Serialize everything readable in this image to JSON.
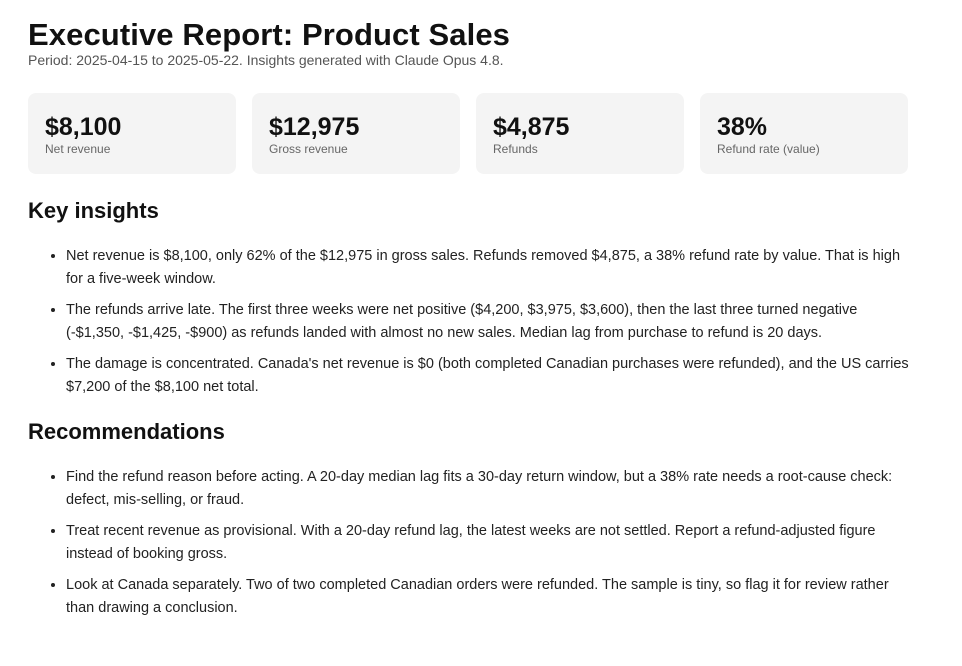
{
  "header": {
    "title": "Executive Report: Product Sales",
    "subtitle": "Period: 2025-04-15 to 2025-05-22. Insights generated with Claude Opus 4.8."
  },
  "kpis": [
    {
      "value": "$8,100",
      "label": "Net revenue"
    },
    {
      "value": "$12,975",
      "label": "Gross revenue"
    },
    {
      "value": "$4,875",
      "label": "Refunds"
    },
    {
      "value": "38%",
      "label": "Refund rate (value)"
    }
  ],
  "insights": {
    "heading": "Key insights",
    "items": [
      "Net revenue is $8,100, only 62% of the $12,975 in gross sales. Refunds removed $4,875, a 38% refund rate by value. That is high for a five-week window.",
      "The refunds arrive late. The first three weeks were net positive ($4,200, $3,975, $3,600), then the last three turned negative (-$1,350, -$1,425, -$900) as refunds landed with almost no new sales. Median lag from purchase to refund is 20 days.",
      "The damage is concentrated. Canada's net revenue is $0 (both completed Canadian purchases were refunded), and the US carries $7,200 of the $8,100 net total."
    ]
  },
  "recommendations": {
    "heading": "Recommendations",
    "items": [
      "Find the refund reason before acting. A 20-day median lag fits a 30-day return window, but a 38% rate needs a root-cause check: defect, mis-selling, or fraud.",
      "Treat recent revenue as provisional. With a 20-day refund lag, the latest weeks are not settled. Report a refund-adjusted figure instead of booking gross.",
      "Look at Canada separately. Two of two completed Canadian orders were refunded. The sample is tiny, so flag it for review rather than drawing a conclusion."
    ]
  }
}
